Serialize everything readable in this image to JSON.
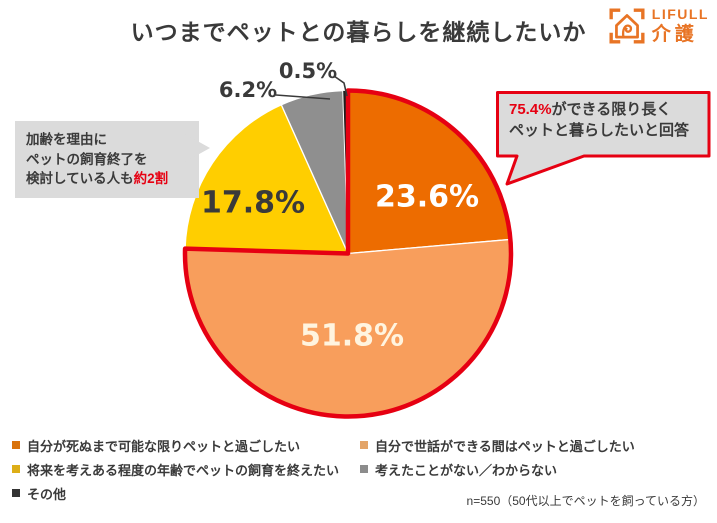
{
  "title": "いつまでペットとの暮らしを継続したいか",
  "logo": {
    "brand": "LIFULL",
    "service": "介護",
    "color": "#E87425"
  },
  "chart_data": {
    "type": "pie",
    "title": "いつまでペットとの暮らしを継続したいか",
    "unit": "percent",
    "start_angle_deg": 0,
    "direction": "clockwise",
    "legend_position": "bottom",
    "series": [
      {
        "label": "自分が死ぬまで可能な限りペットと過ごしたい",
        "value": 23.6,
        "color": "#ED6C00",
        "value_label_color": "#FFFFFF"
      },
      {
        "label": "自分で世話ができる間はペットと過ごしたい",
        "value": 51.8,
        "color": "#F89E5C",
        "value_label_color": "#FFF4DF"
      },
      {
        "label": "将来を考えある程度の年齢でペットの飼育を終えたい",
        "value": 17.8,
        "color": "#FFCE00",
        "value_label_color": "#3A3A3A"
      },
      {
        "label": "考えたことがない／わからない",
        "value": 6.2,
        "color": "#8F8F8F",
        "value_label_color": "#3A3A3A"
      },
      {
        "label": "その他",
        "value": 0.5,
        "color": "#1E1E1E",
        "value_label_color": "#3A3A3A"
      }
    ],
    "highlight": {
      "slice_indices": [
        0,
        1
      ],
      "group_total": 75.4,
      "outline_color": "#E60012"
    }
  },
  "callout_left": {
    "line1": "加齢を理由に",
    "line2": "ペットの飼育終了を",
    "line3_prefix": "検討している人も",
    "line3_highlight": "約2割",
    "highlight_color": "#E60012"
  },
  "callout_right": {
    "highlight": "75.4%",
    "line1_rest": "ができる限り長く",
    "line2": "ペットと暮らしたいと回答",
    "highlight_color": "#E60012",
    "border_color": "#E60012"
  },
  "legend": {
    "swatch_colors": [
      "#D9730D",
      "#E3A468",
      "#DDAE17",
      "#8C8C8C",
      "#333333"
    ],
    "column1_indices": [
      0,
      2,
      4
    ],
    "column2_indices": [
      1,
      3
    ]
  },
  "footnote": "n=550（50代以上でペットを飼っている方）",
  "colors": {
    "accent_red": "#E60012",
    "text_dark": "#3A3A3A",
    "callout_bg": "#DBDBDB"
  }
}
